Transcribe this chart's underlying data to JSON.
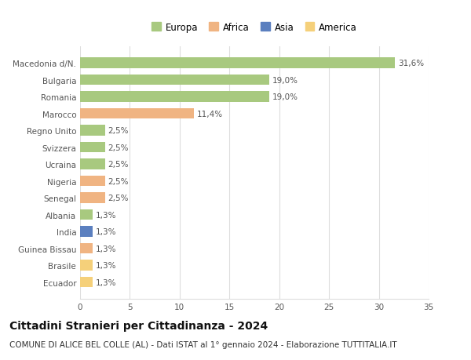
{
  "categories": [
    "Macedonia d/N.",
    "Bulgaria",
    "Romania",
    "Marocco",
    "Regno Unito",
    "Svizzera",
    "Ucraina",
    "Nigeria",
    "Senegal",
    "Albania",
    "India",
    "Guinea Bissau",
    "Brasile",
    "Ecuador"
  ],
  "values": [
    31.6,
    19.0,
    19.0,
    11.4,
    2.5,
    2.5,
    2.5,
    2.5,
    2.5,
    1.3,
    1.3,
    1.3,
    1.3,
    1.3
  ],
  "labels": [
    "31,6%",
    "19,0%",
    "19,0%",
    "11,4%",
    "2,5%",
    "2,5%",
    "2,5%",
    "2,5%",
    "2,5%",
    "1,3%",
    "1,3%",
    "1,3%",
    "1,3%",
    "1,3%"
  ],
  "bar_colors": [
    "#a8c97f",
    "#a8c97f",
    "#a8c97f",
    "#f0b482",
    "#a8c97f",
    "#a8c97f",
    "#a8c97f",
    "#f0b482",
    "#f0b482",
    "#a8c97f",
    "#5b7fbf",
    "#f0b482",
    "#f5d07a",
    "#f5d07a"
  ],
  "legend_labels": [
    "Europa",
    "Africa",
    "Asia",
    "America"
  ],
  "legend_colors": [
    "#a8c97f",
    "#f0b482",
    "#5b7fbf",
    "#f5d07a"
  ],
  "xlim": [
    0,
    35
  ],
  "xticks": [
    0,
    5,
    10,
    15,
    20,
    25,
    30,
    35
  ],
  "title": "Cittadini Stranieri per Cittadinanza - 2024",
  "subtitle": "COMUNE DI ALICE BEL COLLE (AL) - Dati ISTAT al 1° gennaio 2024 - Elaborazione TUTTITALIA.IT",
  "background_color": "#ffffff",
  "grid_color": "#dddddd",
  "bar_height": 0.62,
  "title_fontsize": 10,
  "subtitle_fontsize": 7.5,
  "label_fontsize": 7.5,
  "tick_fontsize": 7.5,
  "legend_fontsize": 8.5
}
